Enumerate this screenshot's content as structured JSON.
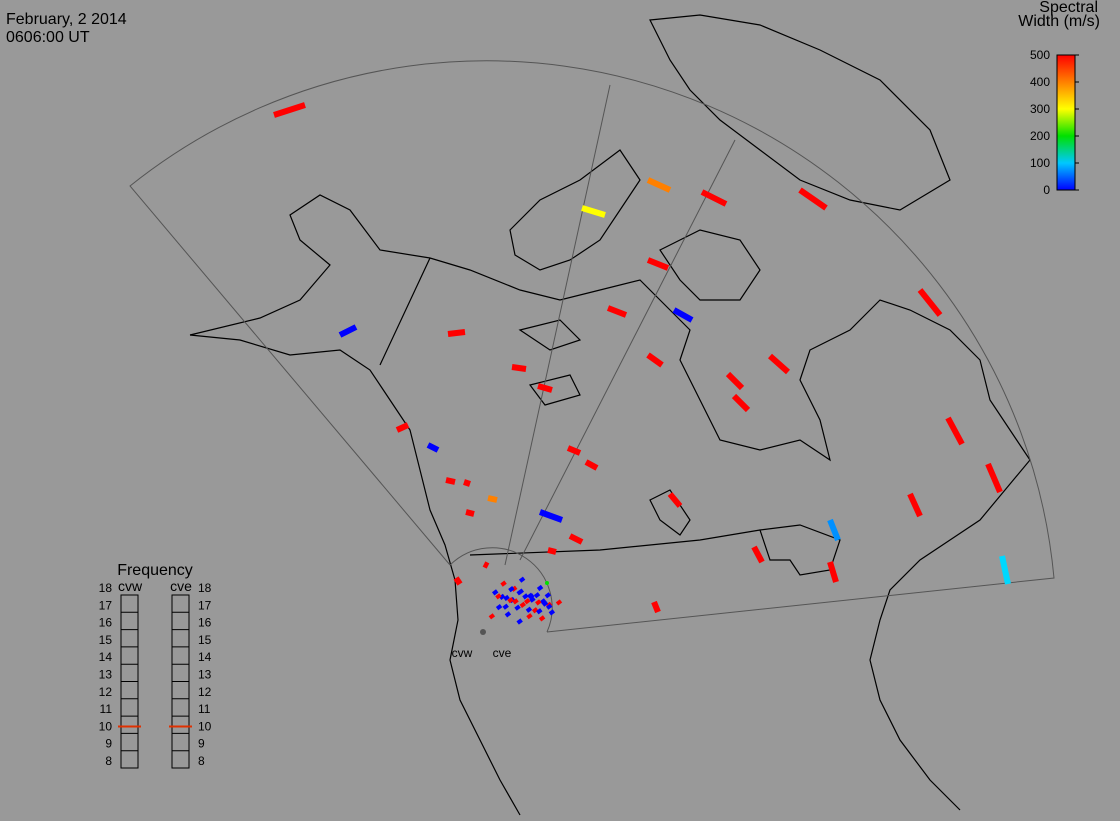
{
  "header": {
    "date": "February, 2 2014",
    "time": "0606:00 UT"
  },
  "colorbar": {
    "title_line1": "Spectral",
    "title_line2": "Width (m/s)",
    "lim": [
      0,
      500
    ],
    "ticks": [
      0,
      100,
      200,
      300,
      400,
      500
    ]
  },
  "frequency": {
    "title": "Frequency",
    "lim": [
      8,
      18
    ],
    "ticks": [
      8,
      9,
      10,
      11,
      12,
      13,
      14,
      15,
      16,
      17,
      18
    ],
    "radars": [
      {
        "name": "cvw",
        "value": 10.4
      },
      {
        "name": "cve",
        "value": 10.4
      }
    ]
  }
}
